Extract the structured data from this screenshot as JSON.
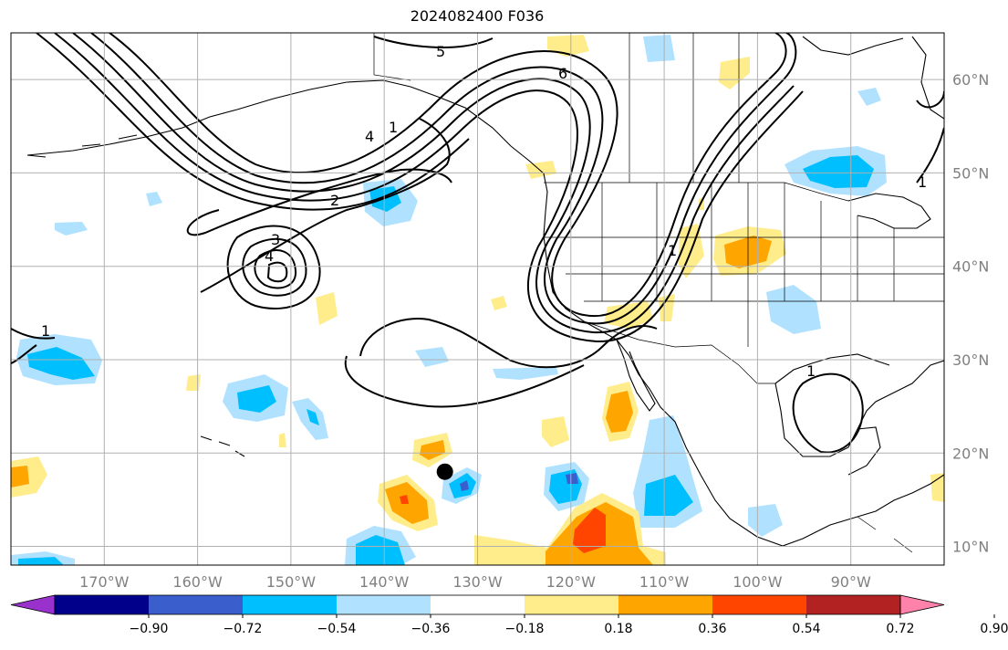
{
  "title": "2024082400 F036",
  "chart_data": {
    "type": "contour-map",
    "title": "2024082400 F036",
    "projection": "Plate Carree",
    "lon_range": [
      -180,
      -80
    ],
    "lat_range": [
      8,
      65
    ],
    "lon_ticks": [
      {
        "value": -170,
        "label": "170°W"
      },
      {
        "value": -160,
        "label": "160°W"
      },
      {
        "value": -150,
        "label": "150°W"
      },
      {
        "value": -140,
        "label": "140°W"
      },
      {
        "value": -130,
        "label": "130°W"
      },
      {
        "value": -120,
        "label": "120°W"
      },
      {
        "value": -110,
        "label": "110°W"
      },
      {
        "value": -100,
        "label": "100°W"
      },
      {
        "value": -90,
        "label": "90°W"
      }
    ],
    "lat_ticks": [
      {
        "value": 10,
        "label": "10°N"
      },
      {
        "value": 20,
        "label": "20°N"
      },
      {
        "value": 30,
        "label": "30°N"
      },
      {
        "value": 40,
        "label": "40°N"
      },
      {
        "value": 50,
        "label": "50°N"
      },
      {
        "value": 60,
        "label": "60°N"
      }
    ],
    "grid": true,
    "colorbar": {
      "orientation": "horizontal",
      "extend": "both",
      "levels": [
        -0.9,
        -0.72,
        -0.54,
        -0.36,
        -0.18,
        0.18,
        0.36,
        0.54,
        0.72,
        0.9
      ],
      "labels": [
        "−0.90",
        "−0.72",
        "−0.54",
        "−0.36",
        "−0.18",
        "0.18",
        "0.36",
        "0.54",
        "0.72",
        "0.90"
      ],
      "colors": [
        "#9932cc",
        "#00008b",
        "#3a5fcd",
        "#00bfff",
        "#b0e2ff",
        "#ffffff",
        "#ffec8b",
        "#ffa500",
        "#ff4500",
        "#b22222",
        "#ff82ab"
      ]
    },
    "contour_labels": [
      "5",
      "6",
      "4",
      "1",
      "2",
      "3",
      "4",
      "1",
      "1",
      "1",
      "1"
    ],
    "marker": {
      "lon": -133.5,
      "lat": 18,
      "symbol": "filled-circle"
    },
    "shaded_regions": [
      {
        "lon": -175,
        "lat": 32.5,
        "value": -0.54
      },
      {
        "lon": -147,
        "lat": 25.5,
        "value": -0.54
      },
      {
        "lon": -141,
        "lat": 48,
        "value": -0.54
      },
      {
        "lon": -90,
        "lat": 50,
        "value": -0.54
      },
      {
        "lon": -133,
        "lat": 16.5,
        "value": -0.72
      },
      {
        "lon": -120.5,
        "lat": 17,
        "value": -0.72
      },
      {
        "lon": -111,
        "lat": 16,
        "value": -0.54
      },
      {
        "lon": -140,
        "lat": 10,
        "value": -0.54
      },
      {
        "lon": -102,
        "lat": 41.5,
        "value": 0.36
      },
      {
        "lon": -116,
        "lat": 23.5,
        "value": 0.36
      },
      {
        "lon": -138,
        "lat": 16,
        "value": 0.54
      },
      {
        "lon": -117.5,
        "lat": 12,
        "value": 0.54
      },
      {
        "lon": -134.5,
        "lat": 20.5,
        "value": 0.36
      }
    ]
  }
}
